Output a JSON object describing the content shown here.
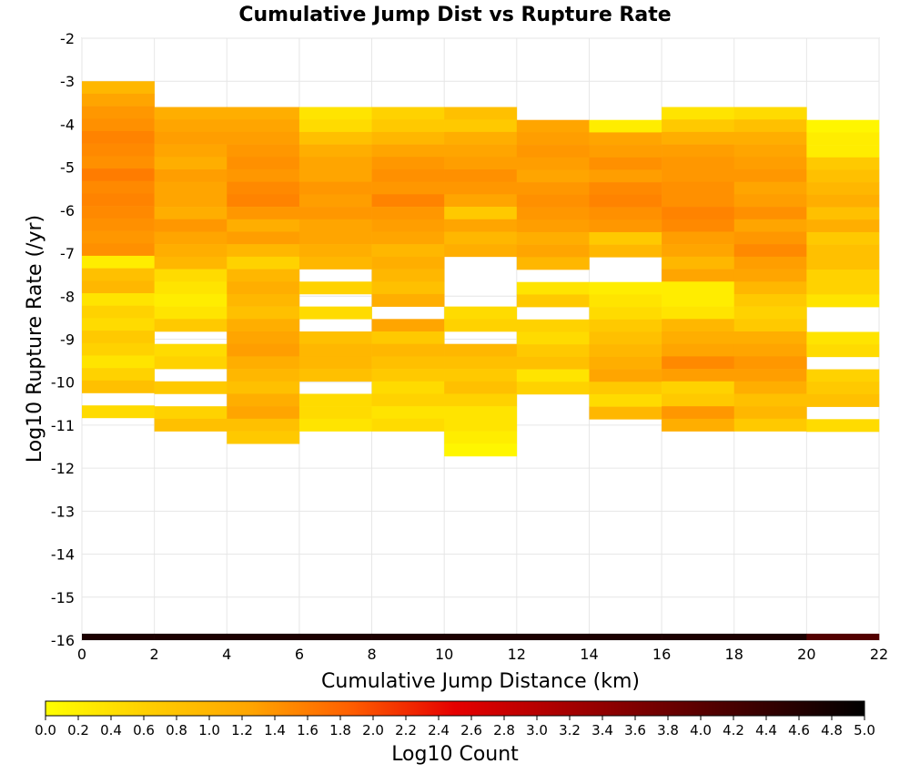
{
  "chart_data": {
    "type": "heatmap",
    "title": "Cumulative Jump Dist vs Rupture Rate",
    "xlabel": "Cumulative Jump Distance (km)",
    "ylabel": "Log10 Rupture Rate (/yr)",
    "colorbar_label": "Log10 Count",
    "xlim": [
      0,
      22
    ],
    "ylim": [
      -16,
      -2
    ],
    "x_ticks": [
      "0",
      "2",
      "4",
      "6",
      "8",
      "10",
      "12",
      "14",
      "16",
      "18",
      "20",
      "22"
    ],
    "y_ticks": [
      "-2",
      "-3",
      "-4",
      "-5",
      "-6",
      "-7",
      "-8",
      "-9",
      "-10",
      "-11",
      "-12",
      "-13",
      "-14",
      "-15",
      "-16"
    ],
    "colorbar_ticks": [
      "0.0",
      "0.2",
      "0.4",
      "0.6",
      "0.8",
      "1.0",
      "1.2",
      "1.4",
      "1.6",
      "1.8",
      "2.0",
      "2.2",
      "2.4",
      "2.6",
      "2.8",
      "3.0",
      "3.2",
      "3.4",
      "3.6",
      "3.8",
      "4.0",
      "4.2",
      "4.4",
      "4.6",
      "4.8",
      "5.0"
    ],
    "color_range": [
      0,
      5
    ],
    "colormap": [
      "#ffff00",
      "#ffa500",
      "#ff6000",
      "#e60000",
      "#8b0000",
      "#000000"
    ],
    "grid": true,
    "x_bin_width": 2,
    "y_bin_height": 0.29,
    "columns": [
      {
        "x": 0,
        "y_top": -3.0,
        "values": [
          0.8,
          1.0,
          1.2,
          1.3,
          1.5,
          1.4,
          1.3,
          1.6,
          1.4,
          1.5,
          1.4,
          1.3,
          1.2,
          1.3,
          0.2,
          0.7,
          0.8,
          0.3,
          0.5,
          0.4,
          0.6,
          0.5,
          0.3,
          0.5,
          0.7,
          null,
          0.4,
          null
        ]
      },
      {
        "x": 2,
        "y_top": -3.6,
        "values": [
          0.9,
          1.0,
          1.1,
          1.0,
          0.9,
          1.1,
          1.0,
          1.0,
          0.9,
          1.2,
          1.0,
          0.9,
          0.8,
          0.4,
          0.3,
          0.2,
          0.3,
          0.6,
          null,
          0.4,
          0.5,
          null,
          0.6,
          null,
          0.5,
          0.7
        ]
      },
      {
        "x": 4,
        "y_top": -3.6,
        "values": [
          0.9,
          1.0,
          1.1,
          1.2,
          1.3,
          1.2,
          1.4,
          1.5,
          1.2,
          0.9,
          1.1,
          0.8,
          0.5,
          0.8,
          0.9,
          0.8,
          0.7,
          0.9,
          1.0,
          1.1,
          0.9,
          0.8,
          0.7,
          0.9,
          1.0,
          0.7,
          0.6
        ]
      },
      {
        "x": 6,
        "y_top": -3.6,
        "values": [
          0.3,
          0.4,
          0.7,
          0.9,
          1.0,
          1.0,
          1.2,
          1.1,
          1.2,
          1.0,
          1.0,
          0.9,
          0.8,
          null,
          0.5,
          null,
          0.4,
          null,
          0.7,
          0.8,
          0.8,
          0.7,
          null,
          0.4,
          0.4,
          0.3
        ]
      },
      {
        "x": 8,
        "y_top": -3.6,
        "values": [
          0.5,
          0.6,
          0.8,
          1.0,
          1.2,
          1.3,
          1.2,
          1.5,
          1.2,
          1.1,
          1.0,
          0.8,
          0.9,
          0.8,
          0.7,
          0.9,
          null,
          1.0,
          0.6,
          0.8,
          0.7,
          0.6,
          0.4,
          0.5,
          0.3,
          0.4
        ]
      },
      {
        "x": 10,
        "y_top": -3.6,
        "values": [
          0.7,
          0.6,
          0.9,
          1.0,
          1.1,
          1.3,
          1.2,
          1.0,
          0.6,
          1.0,
          0.8,
          0.9,
          null,
          null,
          null,
          null,
          0.4,
          0.5,
          null,
          0.8,
          0.7,
          0.6,
          0.7,
          0.5,
          0.3,
          0.3,
          0.2,
          0.1
        ]
      },
      {
        "x": 12,
        "y_top": -3.9,
        "values": [
          1.0,
          1.1,
          1.2,
          1.1,
          1.0,
          1.2,
          1.3,
          1.2,
          1.1,
          0.9,
          1.0,
          0.8,
          null,
          0.3,
          0.6,
          null,
          0.5,
          0.4,
          0.6,
          0.7,
          0.3,
          0.5,
          null
        ]
      },
      {
        "x": 14,
        "y_top": -3.9,
        "values": [
          0.2,
          1.0,
          1.1,
          1.3,
          1.1,
          1.4,
          1.5,
          1.3,
          1.2,
          0.6,
          0.8,
          null,
          null,
          0.2,
          0.3,
          0.4,
          0.6,
          0.7,
          0.8,
          0.9,
          1.0,
          0.6,
          0.4,
          0.8
        ]
      },
      {
        "x": 16,
        "y_top": -3.6,
        "values": [
          0.3,
          0.6,
          0.9,
          1.1,
          1.2,
          1.2,
          1.3,
          1.3,
          1.5,
          1.4,
          1.1,
          1.0,
          0.8,
          1.0,
          0.2,
          0.2,
          0.3,
          0.8,
          0.9,
          1.0,
          1.4,
          1.1,
          0.5,
          0.6,
          1.2,
          0.9
        ]
      },
      {
        "x": 18,
        "y_top": -3.6,
        "values": [
          0.4,
          0.7,
          0.9,
          1.0,
          1.1,
          1.2,
          1.0,
          1.1,
          1.3,
          1.0,
          1.2,
          1.4,
          1.1,
          1.0,
          0.8,
          0.6,
          0.5,
          0.6,
          0.9,
          1.0,
          1.2,
          1.1,
          0.9,
          0.7,
          0.8,
          0.6
        ]
      },
      {
        "x": 20,
        "y_top": -3.9,
        "values": [
          0.1,
          0.2,
          0.2,
          0.6,
          0.7,
          0.8,
          0.9,
          0.7,
          0.9,
          0.6,
          0.7,
          0.7,
          0.5,
          0.5,
          0.3,
          null,
          null,
          0.3,
          0.4,
          null,
          0.5,
          0.6,
          0.7,
          null,
          0.4
        ]
      }
    ],
    "bottom_row": {
      "y_bottom": -16,
      "y_top": -15.85,
      "values": [
        4.8,
        4.8,
        4.8,
        4.8,
        4.8,
        4.8,
        4.8,
        4.8,
        4.8,
        4.8,
        4.4
      ]
    }
  }
}
